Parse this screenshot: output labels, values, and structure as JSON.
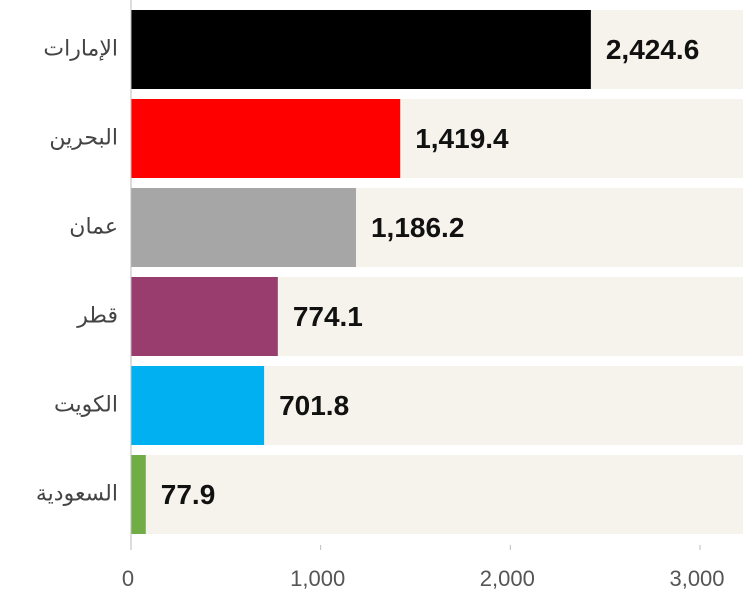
{
  "chart_data": {
    "type": "bar",
    "orientation": "horizontal",
    "categories": [
      "الإمارات",
      "البحرين",
      "عمان",
      "قطر",
      "الكويت",
      "السعودية"
    ],
    "values": [
      2424.6,
      1419.4,
      1186.2,
      774.1,
      701.8,
      77.9
    ],
    "value_labels": [
      "2,424.6",
      "1,419.4",
      "1,186.2",
      "774.1",
      "701.8",
      "77.9"
    ],
    "colors": [
      "#000000",
      "#ff0000",
      "#a6a6a6",
      "#993d6e",
      "#00b0f0",
      "#70ad47"
    ],
    "xlim": [
      0,
      3000
    ],
    "xticks": [
      0,
      {
        "value": 1000,
        "label": "1,000"
      },
      {
        "value": 2000,
        "label": "2,000"
      },
      {
        "value": 3000,
        "label": "3,000"
      }
    ],
    "grid": false
  }
}
